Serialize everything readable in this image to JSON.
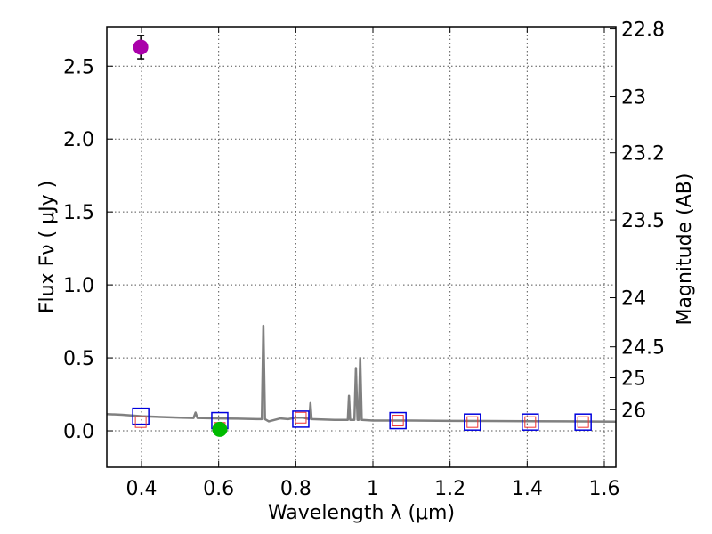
{
  "chart_data": {
    "type": "scatter",
    "title": "",
    "xlabel": "Wavelength  λ (μm)",
    "ylabel": "Flux  Fν  ( μJy )",
    "y2label": "Magnitude (AB)",
    "xlim": [
      0.31,
      1.63
    ],
    "ylim": [
      -0.25,
      2.77
    ],
    "grid": true,
    "legend": "none",
    "x_ticks": [
      "0.4",
      "0.6",
      "0.8",
      "1",
      "1.2",
      "1.4",
      "1.6"
    ],
    "y_ticks": [
      "0.0",
      "0.5",
      "1.0",
      "1.5",
      "2.0",
      "2.5"
    ],
    "y2_ticks": [
      {
        "label": "22.8",
        "mag": 22.8
      },
      {
        "label": "23",
        "mag": 23.0
      },
      {
        "label": "23.2",
        "mag": 23.2
      },
      {
        "label": "23.5",
        "mag": 23.5
      },
      {
        "label": "24",
        "mag": 24.0
      },
      {
        "label": "24.5",
        "mag": 24.5
      },
      {
        "label": "25",
        "mag": 25.0
      },
      {
        "label": "26",
        "mag": 26.0
      }
    ],
    "model_spectrum": {
      "color": "#808080",
      "points": [
        [
          0.31,
          0.115
        ],
        [
          0.35,
          0.11
        ],
        [
          0.4,
          0.1
        ],
        [
          0.45,
          0.095
        ],
        [
          0.5,
          0.09
        ],
        [
          0.535,
          0.088
        ],
        [
          0.54,
          0.125
        ],
        [
          0.545,
          0.088
        ],
        [
          0.6,
          0.085
        ],
        [
          0.65,
          0.083
        ],
        [
          0.7,
          0.08
        ],
        [
          0.712,
          0.08
        ],
        [
          0.716,
          0.72
        ],
        [
          0.72,
          0.08
        ],
        [
          0.73,
          0.065
        ],
        [
          0.76,
          0.085
        ],
        [
          0.78,
          0.08
        ],
        [
          0.8,
          0.09
        ],
        [
          0.82,
          0.09
        ],
        [
          0.835,
          0.08
        ],
        [
          0.838,
          0.19
        ],
        [
          0.841,
          0.08
        ],
        [
          0.9,
          0.075
        ],
        [
          0.935,
          0.075
        ],
        [
          0.938,
          0.24
        ],
        [
          0.941,
          0.075
        ],
        [
          0.952,
          0.075
        ],
        [
          0.956,
          0.43
        ],
        [
          0.96,
          0.075
        ],
        [
          0.963,
          0.075
        ],
        [
          0.967,
          0.5
        ],
        [
          0.971,
          0.075
        ],
        [
          1.0,
          0.07
        ],
        [
          1.1,
          0.07
        ],
        [
          1.2,
          0.068
        ],
        [
          1.3,
          0.067
        ],
        [
          1.4,
          0.066
        ],
        [
          1.5,
          0.065
        ],
        [
          1.63,
          0.063
        ]
      ]
    },
    "model_photometry": [
      {
        "x": 0.398,
        "y": 0.1
      },
      {
        "x": 0.603,
        "y": 0.07
      },
      {
        "x": 0.813,
        "y": 0.08
      },
      {
        "x": 1.065,
        "y": 0.07
      },
      {
        "x": 1.258,
        "y": 0.06
      },
      {
        "x": 1.408,
        "y": 0.06
      },
      {
        "x": 1.545,
        "y": 0.06
      }
    ],
    "observed_photometry": [
      {
        "x": 0.398,
        "y": 0.06
      },
      {
        "x": 0.603,
        "y": 0.02
      },
      {
        "x": 0.813,
        "y": 0.09
      },
      {
        "x": 1.065,
        "y": 0.07
      },
      {
        "x": 1.258,
        "y": 0.06
      },
      {
        "x": 1.408,
        "y": 0.06
      },
      {
        "x": 1.545,
        "y": 0.06
      }
    ],
    "detections": [
      {
        "x": 0.398,
        "y": 2.63,
        "err": 0.08,
        "color": "#aa00aa"
      },
      {
        "x": 0.603,
        "y": 0.01,
        "err": 0.03,
        "color": "#00bb00"
      }
    ],
    "colors": {
      "model_square": "#0000dd",
      "observed_square": "#ee3333",
      "grid": "#555555",
      "model_line": "#808080"
    }
  }
}
